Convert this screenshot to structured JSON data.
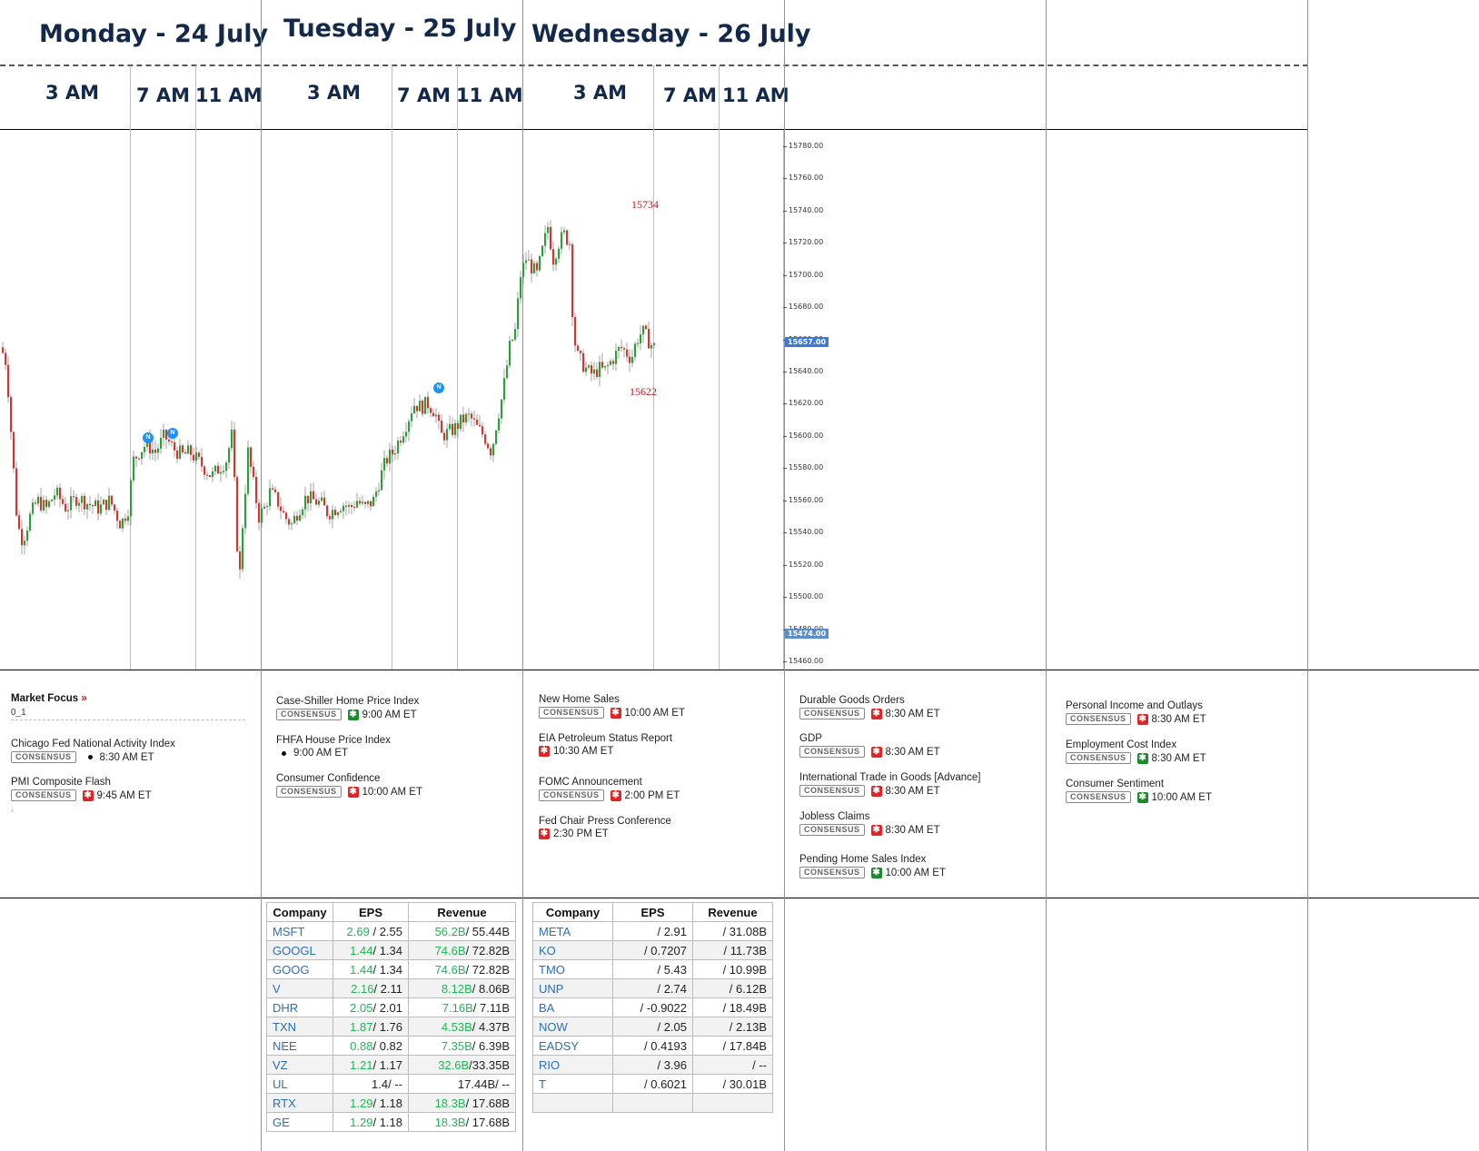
{
  "days": [
    {
      "title": "Monday - 24 July",
      "hours": [
        "3 AM",
        "7 AM",
        "11 AM"
      ]
    },
    {
      "title": "Tuesday - 25 July",
      "hours": [
        "3 AM",
        "7 AM",
        "11 AM"
      ]
    },
    {
      "title": "Wednesday - 26 July",
      "hours": [
        "3 AM",
        "7 AM",
        "11 AM"
      ]
    }
  ],
  "chart_data": {
    "type": "candlestick",
    "ylim": [
      15455,
      15790
    ],
    "yticks": [
      "15780.00",
      "15760.00",
      "15740.00",
      "15720.00",
      "15700.00",
      "15680.00",
      "15660.00",
      "15640.00",
      "15620.00",
      "15600.00",
      "15580.00",
      "15560.00",
      "15540.00",
      "15520.00",
      "15500.00",
      "15480.00",
      "15460.00"
    ],
    "current_price": "15657.00",
    "low_price_label": "15474.00",
    "high_annotation": "15734",
    "low_annotation": "15622",
    "news_marker": "N",
    "colors": {
      "up": "#2e9d3a",
      "down": "#d0382f",
      "current_badge": "#3b78d8",
      "low_badge": "#5b8fc9"
    },
    "path": [
      [
        0,
        15655
      ],
      [
        6,
        15645
      ],
      [
        12,
        15595
      ],
      [
        18,
        15545
      ],
      [
        24,
        15535
      ],
      [
        32,
        15550
      ],
      [
        40,
        15560
      ],
      [
        50,
        15555
      ],
      [
        60,
        15565
      ],
      [
        72,
        15555
      ],
      [
        84,
        15562
      ],
      [
        96,
        15558
      ],
      [
        108,
        15555
      ],
      [
        120,
        15560
      ],
      [
        132,
        15545
      ],
      [
        140,
        15555
      ],
      [
        146,
        15585
      ],
      [
        152,
        15590
      ],
      [
        160,
        15595
      ],
      [
        170,
        15590
      ],
      [
        180,
        15600
      ],
      [
        190,
        15592
      ],
      [
        200,
        15588
      ],
      [
        208,
        15590
      ],
      [
        216,
        15585
      ],
      [
        224,
        15580
      ],
      [
        232,
        15575
      ],
      [
        240,
        15580
      ],
      [
        248,
        15585
      ],
      [
        254,
        15600
      ],
      [
        258,
        15560
      ],
      [
        262,
        15505
      ],
      [
        266,
        15545
      ],
      [
        272,
        15590
      ],
      [
        278,
        15570
      ],
      [
        284,
        15550
      ],
      [
        290,
        15555
      ],
      [
        296,
        15565
      ],
      [
        304,
        15560
      ],
      [
        312,
        15550
      ],
      [
        320,
        15545
      ],
      [
        328,
        15555
      ],
      [
        336,
        15562
      ],
      [
        344,
        15560
      ],
      [
        352,
        15558
      ],
      [
        360,
        15552
      ],
      [
        368,
        15555
      ],
      [
        376,
        15558
      ],
      [
        384,
        15555
      ],
      [
        392,
        15560
      ],
      [
        400,
        15555
      ],
      [
        410,
        15560
      ],
      [
        418,
        15575
      ],
      [
        424,
        15585
      ],
      [
        432,
        15590
      ],
      [
        440,
        15600
      ],
      [
        448,
        15610
      ],
      [
        454,
        15620
      ],
      [
        462,
        15618
      ],
      [
        470,
        15620
      ],
      [
        478,
        15615
      ],
      [
        484,
        15600
      ],
      [
        492,
        15602
      ],
      [
        500,
        15605
      ],
      [
        508,
        15610
      ],
      [
        516,
        15612
      ],
      [
        524,
        15605
      ],
      [
        532,
        15600
      ],
      [
        540,
        15590
      ],
      [
        546,
        15610
      ],
      [
        552,
        15625
      ],
      [
        560,
        15655
      ],
      [
        566,
        15665
      ],
      [
        572,
        15700
      ],
      [
        578,
        15710
      ],
      [
        584,
        15705
      ],
      [
        590,
        15700
      ],
      [
        596,
        15715
      ],
      [
        602,
        15730
      ],
      [
        608,
        15710
      ],
      [
        614,
        15720
      ],
      [
        620,
        15725
      ],
      [
        626,
        15720
      ],
      [
        630,
        15665
      ],
      [
        634,
        15650
      ],
      [
        640,
        15645
      ],
      [
        646,
        15640
      ],
      [
        652,
        15638
      ],
      [
        658,
        15642
      ],
      [
        664,
        15640
      ],
      [
        670,
        15645
      ],
      [
        676,
        15650
      ],
      [
        682,
        15655
      ],
      [
        688,
        15652
      ],
      [
        694,
        15648
      ],
      [
        700,
        15660
      ],
      [
        706,
        15665
      ],
      [
        712,
        15660
      ],
      [
        718,
        15655
      ]
    ]
  },
  "market_focus": {
    "title": "Market Focus",
    "arrow": "»",
    "sub": "0_1",
    "footnote": "."
  },
  "events": [
    [
      {
        "name": "Chicago Fed National Activity Index",
        "badge": "CONSENSUS",
        "impact": "dot",
        "time": "8:30 AM ET"
      },
      {
        "name": "PMI Composite Flash",
        "badge": "CONSENSUS",
        "impact": "high",
        "time": "9:45 AM ET"
      }
    ],
    [
      {
        "name": "Case-Shiller Home Price Index",
        "badge": "CONSENSUS",
        "impact": "med",
        "time": "9:00 AM ET"
      },
      {
        "name": "FHFA House Price Index",
        "badge": "",
        "impact": "dot",
        "time": "9:00 AM ET"
      },
      {
        "name": "Consumer Confidence",
        "badge": "CONSENSUS",
        "impact": "high",
        "time": "10:00 AM ET"
      }
    ],
    [
      {
        "name": "New Home Sales",
        "badge": "CONSENSUS",
        "impact": "high",
        "time": "10:00 AM ET"
      },
      {
        "name": "EIA Petroleum Status Report",
        "badge": "",
        "impact": "high",
        "time": "10:30 AM ET"
      },
      {
        "name": "FOMC Announcement",
        "badge": "CONSENSUS",
        "impact": "high",
        "time": "2:00 PM ET"
      },
      {
        "name": "Fed Chair Press Conference",
        "badge": "",
        "impact": "high",
        "time": "2:30 PM ET"
      }
    ],
    [
      {
        "name": "Durable Goods Orders",
        "badge": "CONSENSUS",
        "impact": "high",
        "time": "8:30 AM ET"
      },
      {
        "name": "GDP",
        "badge": "CONSENSUS",
        "impact": "high",
        "time": "8:30 AM ET"
      },
      {
        "name": "International Trade in Goods [Advance]",
        "badge": "CONSENSUS",
        "impact": "high",
        "time": "8:30 AM ET"
      },
      {
        "name": "Jobless Claims",
        "badge": "CONSENSUS",
        "impact": "high",
        "time": "8:30 AM ET"
      },
      {
        "name": "Pending Home Sales Index",
        "badge": "CONSENSUS",
        "impact": "med",
        "time": "10:00 AM ET"
      }
    ],
    [
      {
        "name": "Personal Income and Outlays",
        "badge": "CONSENSUS",
        "impact": "high",
        "time": "8:30 AM ET"
      },
      {
        "name": "Employment Cost Index",
        "badge": "CONSENSUS",
        "impact": "med",
        "time": "8:30 AM ET"
      },
      {
        "name": "Consumer Sentiment",
        "badge": "CONSENSUS",
        "impact": "med",
        "time": "10:00 AM ET"
      }
    ]
  ],
  "earnings_tue": {
    "headers": [
      "Company",
      "EPS",
      "Revenue"
    ],
    "rows": [
      {
        "co": "MSFT",
        "eps_a": "2.69",
        "eps_e": " / 2.55",
        "rev_a": "56.2B",
        "rev_e": "/ 55.44B"
      },
      {
        "co": "GOOGL",
        "eps_a": "1.44",
        "eps_e": "/ 1.34",
        "rev_a": "74.6B",
        "rev_e": "/ 72.82B"
      },
      {
        "co": "GOOG",
        "eps_a": "1.44",
        "eps_e": "/ 1.34",
        "rev_a": "74.6B",
        "rev_e": "/ 72.82B"
      },
      {
        "co": "V",
        "eps_a": "2.16",
        "eps_e": "/ 2.11",
        "rev_a": "8.12B",
        "rev_e": "/ 8.06B"
      },
      {
        "co": "DHR",
        "eps_a": "2.05",
        "eps_e": "/ 2.01",
        "rev_a": "7.16B",
        "rev_e": "/ 7.11B"
      },
      {
        "co": "TXN",
        "eps_a": "1.87",
        "eps_e": "/ 1.76",
        "rev_a": "4.53B",
        "rev_e": "/ 4.37B"
      },
      {
        "co": "NEE",
        "eps_a": "0.88",
        "eps_e": "/ 0.82",
        "rev_a": "7.35B",
        "rev_e": "/ 6.39B"
      },
      {
        "co": "VZ",
        "eps_a": "1.21",
        "eps_e": "/ 1.17",
        "rev_a": "32.6B",
        "rev_e": "/33.35B"
      },
      {
        "co": "UL",
        "eps_a": "",
        "eps_e": "1.4/ --",
        "rev_a": "",
        "rev_e": "17.44B/ --"
      },
      {
        "co": "RTX",
        "eps_a": "1.29",
        "eps_e": "/ 1.18",
        "rev_a": "18.3B",
        "rev_e": "/ 17.68B"
      },
      {
        "co": "GE",
        "eps_a": "1.29",
        "eps_e": "/ 1.18",
        "rev_a": "18.3B",
        "rev_e": "/ 17.68B"
      }
    ]
  },
  "earnings_wed": {
    "headers": [
      "Company",
      "EPS",
      "Revenue"
    ],
    "rows": [
      {
        "co": "META",
        "eps": "/ 2.91",
        "rev": "/ 31.08B"
      },
      {
        "co": "KO",
        "eps": "/ 0.7207",
        "rev": "/ 11.73B"
      },
      {
        "co": "TMO",
        "eps": "/ 5.43",
        "rev": "/ 10.99B"
      },
      {
        "co": "UNP",
        "eps": "/ 2.74",
        "rev": "/ 6.12B"
      },
      {
        "co": "BA",
        "eps": "/ -0.9022",
        "rev": "/ 18.49B"
      },
      {
        "co": "NOW",
        "eps": "/ 2.05",
        "rev": "/ 2.13B"
      },
      {
        "co": "EADSY",
        "eps": "/ 0.4193",
        "rev": "/ 17.84B"
      },
      {
        "co": "RIO",
        "eps": "/ 3.96",
        "rev": "/ --"
      },
      {
        "co": "T",
        "eps": "/ 0.6021",
        "rev": "/ 30.01B"
      },
      {
        "co": "",
        "eps": "",
        "rev": ""
      }
    ]
  }
}
